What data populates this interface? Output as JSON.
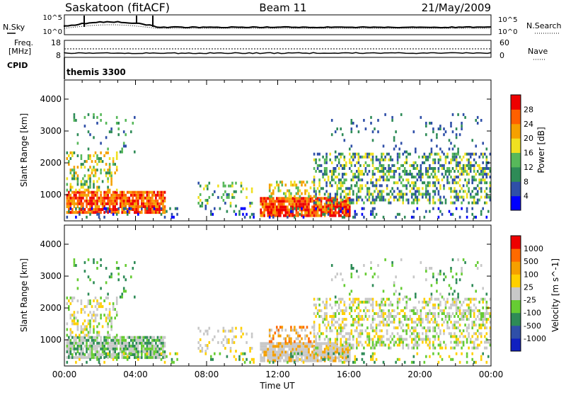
{
  "header": {
    "station": "Saskatoon (fitACF)",
    "beam": "Beam 11",
    "date": "21/May/2009"
  },
  "noise_panel": {
    "left_label": "N.Sky",
    "left_ticks": [
      "10^5",
      "10^0"
    ],
    "right_label": "N.Search",
    "right_ticks": [
      "10^5",
      "10^0"
    ]
  },
  "freq_panel": {
    "left_label_line1": "Freq.",
    "left_label_line2": "[MHz]",
    "left_ticks": [
      "18",
      "8"
    ],
    "right_label": "Nave",
    "right_ticks": [
      "60",
      "0"
    ],
    "cpid_label": "CPID",
    "cpid_value": "themis 3300"
  },
  "chart_data": [
    {
      "type": "heatmap",
      "title": "",
      "xlabel": "",
      "ylabel": "Slant Range [km]",
      "x_range_hours": [
        0,
        24
      ],
      "ylim": [
        180,
        4600
      ],
      "yticks": [
        "4000",
        "3000",
        "2000",
        "1000"
      ],
      "colorbar_label": "Power [dB]",
      "colorbar_ticks": [
        "28",
        "24",
        "20",
        "16",
        "12",
        "8",
        "4"
      ],
      "colorbar_colors": [
        "#0000ff",
        "#2f4fa8",
        "#2e8b57",
        "#57b85a",
        "#f0e020",
        "#f5a000",
        "#ff6000",
        "#ee0000"
      ],
      "features": [
        {
          "t_start": 0.0,
          "t_end": 5.6,
          "r_min": 300,
          "r_max": 2200,
          "peak_dB": 30
        },
        {
          "t_start": 11.0,
          "t_end": 16.0,
          "r_min": 300,
          "r_max": 1200,
          "peak_dB": 30
        },
        {
          "t_start": 14.0,
          "t_end": 24.0,
          "r_min": 700,
          "r_max": 2300,
          "peak_dB": 18
        }
      ]
    },
    {
      "type": "heatmap",
      "title": "",
      "xlabel": "Time UT",
      "ylabel": "Slant Range [km]",
      "x_range_hours": [
        0,
        24
      ],
      "ylim": [
        180,
        4600
      ],
      "xticks": [
        "00:00",
        "04:00",
        "08:00",
        "12:00",
        "16:00",
        "20:00",
        "00:00"
      ],
      "yticks": [
        "4000",
        "3000",
        "2000",
        "1000"
      ],
      "colorbar_label": "Velocity [m s^-1]",
      "colorbar_ticks": [
        "1000",
        "500",
        "100",
        "25",
        "-25",
        "-100",
        "-500",
        "-1000"
      ],
      "colorbar_colors": [
        "#ee0000",
        "#ff6a00",
        "#f5a000",
        "#ffd000",
        "#c8c8c8",
        "#66cc33",
        "#2e8b57",
        "#2f4fa8",
        "#1020c0"
      ]
    }
  ]
}
